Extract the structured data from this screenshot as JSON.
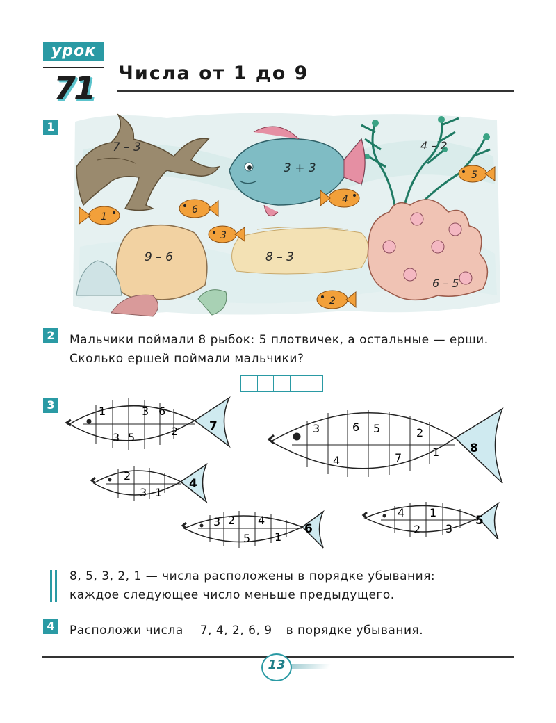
{
  "header": {
    "lesson_label": "урок",
    "lesson_number": "71",
    "title": "Числа от 1 до 9"
  },
  "task1": {
    "number": "1",
    "labels": {
      "coral_left": "7 – 3",
      "big_fish": "3 + 3",
      "seaweed": "4 – 2",
      "fish_5": "5",
      "fish_1": "1",
      "fish_6": "6",
      "fish_3": "3",
      "fish_4": "4",
      "rock": "9 – 6",
      "sand": "8 – 3",
      "coral_right": "6 – 5",
      "fish_2": "2"
    }
  },
  "task2": {
    "number": "2",
    "line1": "Мальчики поймали 8 рыбок: 5 плотвичек, а остальные — ерши.",
    "line2": "Сколько ершей поймали мальчики?",
    "answer_cells": 5
  },
  "task3": {
    "number": "3",
    "fish": [
      {
        "tail": "7",
        "digits": [
          "1",
          "3",
          "6",
          "3",
          "5",
          "2"
        ]
      },
      {
        "tail": "8",
        "digits": [
          "3",
          "6",
          "5",
          "2",
          "4",
          "7",
          "1"
        ]
      },
      {
        "tail": "4",
        "digits": [
          "2",
          "3",
          "1"
        ]
      },
      {
        "tail": "6",
        "digits": [
          "3",
          "2",
          "4",
          "5",
          "1"
        ]
      },
      {
        "tail": "5",
        "digits": [
          "4",
          "1",
          "2",
          "3"
        ]
      }
    ]
  },
  "rule": {
    "line1": "8, 5, 3, 2, 1 — числа расположены в порядке убывания:",
    "line2": "каждое следующее число меньше предыдущего."
  },
  "task4": {
    "number": "4",
    "text_before": "Расположи числа",
    "numbers": "7, 4, 2, 6, 9",
    "text_after": "в порядке убывания."
  },
  "footer": {
    "page_number": "13"
  },
  "colors": {
    "accent": "#2a9aa4",
    "tail_fill": "#cfeaf0",
    "orange_fish": "#f2a03a"
  }
}
